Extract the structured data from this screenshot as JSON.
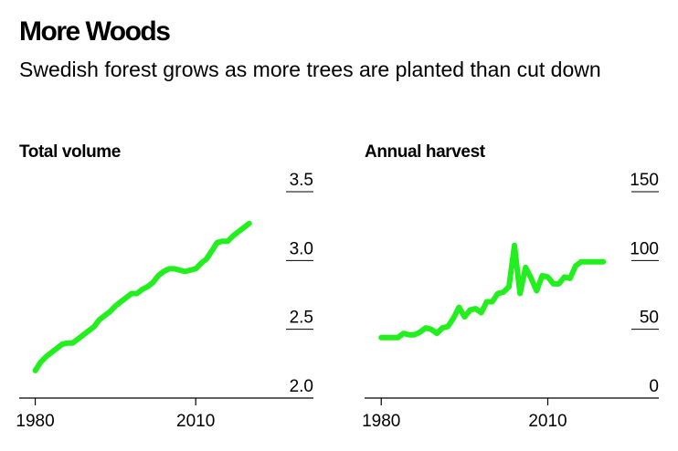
{
  "header": {
    "title": "More Woods",
    "subtitle": "Swedish forest grows as more trees are planted than cut down"
  },
  "colors": {
    "series": "#22f01e",
    "text": "#000000"
  },
  "chart_data": [
    {
      "type": "line",
      "title": "Total volume",
      "xlabel": "",
      "ylabel": "",
      "xlim": [
        1977,
        2032
      ],
      "ylim": [
        2.0,
        3.5
      ],
      "xticks": [
        1980,
        2010
      ],
      "yticks": [
        "2.0",
        "2.5",
        "3.0",
        "3.5"
      ],
      "grid": "horizontal",
      "series": [
        {
          "x": [
            1980,
            1981,
            1982,
            1983,
            1984,
            1985,
            1986,
            1987,
            1988,
            1989,
            1990,
            1991,
            1992,
            1993,
            1994,
            1995,
            1996,
            1997,
            1998,
            1999,
            2000,
            2001,
            2002,
            2003,
            2004,
            2005,
            2006,
            2007,
            2008,
            2009,
            2010,
            2011,
            2012,
            2013,
            2014,
            2015,
            2016,
            2017,
            2018,
            2019,
            2020
          ],
          "values": [
            2.2,
            2.26,
            2.3,
            2.33,
            2.36,
            2.39,
            2.4,
            2.4,
            2.43,
            2.46,
            2.49,
            2.52,
            2.57,
            2.6,
            2.63,
            2.67,
            2.7,
            2.73,
            2.76,
            2.76,
            2.79,
            2.81,
            2.84,
            2.89,
            2.92,
            2.94,
            2.94,
            2.93,
            2.92,
            2.93,
            2.94,
            2.98,
            3.01,
            3.07,
            3.13,
            3.14,
            3.14,
            3.18,
            3.21,
            3.24,
            3.27
          ]
        }
      ]
    },
    {
      "type": "line",
      "title": "Annual harvest",
      "xlabel": "",
      "ylabel": "",
      "xlim": [
        1977,
        2030
      ],
      "ylim": [
        0,
        150
      ],
      "xticks": [
        1980,
        2010
      ],
      "yticks": [
        "0",
        "50",
        "100",
        "150"
      ],
      "grid": "horizontal",
      "series": [
        {
          "x": [
            1980,
            1981,
            1982,
            1983,
            1984,
            1985,
            1986,
            1987,
            1988,
            1989,
            1990,
            1991,
            1992,
            1993,
            1994,
            1995,
            1996,
            1997,
            1998,
            1999,
            2000,
            2001,
            2002,
            2003,
            2004,
            2005,
            2006,
            2007,
            2008,
            2009,
            2010,
            2011,
            2012,
            2013,
            2014,
            2015,
            2016,
            2017,
            2018,
            2019,
            2020
          ],
          "values": [
            44,
            44,
            44,
            44,
            47,
            46,
            46,
            48,
            51,
            50,
            47,
            51,
            52,
            58,
            66,
            59,
            64,
            65,
            62,
            70,
            70,
            76,
            77,
            81,
            111,
            76,
            95,
            87,
            78,
            89,
            88,
            83,
            83,
            88,
            87,
            96,
            99,
            99,
            99,
            99,
            99
          ]
        }
      ]
    }
  ]
}
